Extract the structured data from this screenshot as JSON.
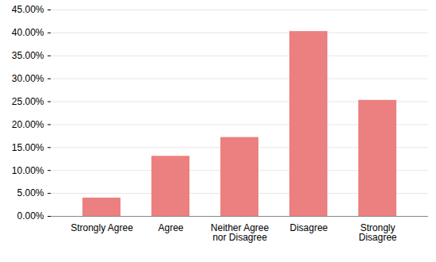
{
  "chart_data": {
    "type": "bar",
    "categories": [
      "Strongly Agree",
      "Agree",
      "Neither Agree nor Disagree",
      "Disagree",
      "Strongly Disagree"
    ],
    "values": [
      4.0,
      13.1,
      17.2,
      40.3,
      25.3
    ],
    "color": "#ec8080",
    "ylim": [
      0,
      45
    ],
    "yticks": [
      {
        "value": 0,
        "label": "0.00%"
      },
      {
        "value": 5,
        "label": "5.00%"
      },
      {
        "value": 10,
        "label": "10.00%"
      },
      {
        "value": 15,
        "label": "15.00%"
      },
      {
        "value": 20,
        "label": "20.00%"
      },
      {
        "value": 25,
        "label": "25.00%"
      },
      {
        "value": 30,
        "label": "30.00%"
      },
      {
        "value": 35,
        "label": "35.00%"
      },
      {
        "value": 40,
        "label": "40.00%"
      },
      {
        "value": 45,
        "label": "45.00%"
      }
    ],
    "grid": true
  }
}
